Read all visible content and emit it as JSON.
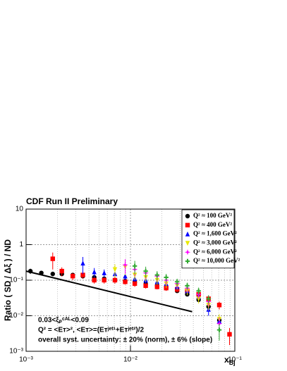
{
  "chart_data": {
    "type": "scatter",
    "title": "CDF Run II Preliminary",
    "y_label": "Ratio ( SD / Δξ ) / ND",
    "x_label": {
      "base": "x",
      "sub": "Bj"
    },
    "log_x": true,
    "log_y": true,
    "grid": true,
    "legend": "upper-right",
    "xlim": [
      0.001,
      0.1
    ],
    "ylim": [
      0.001,
      10
    ],
    "xticks": [
      {
        "value": 0.001,
        "label": "10⁻³"
      },
      {
        "value": 0.01,
        "label": "10⁻²"
      },
      {
        "value": 0.1,
        "label": "10⁻¹"
      }
    ],
    "yticks": [
      {
        "value": 0.001,
        "label": "10⁻³"
      },
      {
        "value": 0.01,
        "label": "10⁻²"
      },
      {
        "value": 0.1,
        "label": "10⁻¹"
      },
      1,
      10
    ],
    "annotations": [
      "0.03<ξₚᶜᴬᴸ<0.09",
      "Q² = <Eᴛ>²,  <Eᴛ>=(Eᴛʲᵉᵗ¹+Eᴛʲᵉᵗ²)/2",
      "overall syst. uncertainty: ± 20% (norm), ± 6% (slope)"
    ],
    "fit": {
      "x": [
        0.001,
        0.039
      ],
      "values": [
        0.18,
        0.013
      ],
      "color": "#000000"
    },
    "series": [
      {
        "name": "Q² ≈  100 GeV²",
        "color": "#000000",
        "marker": "circle",
        "x": [
          0.0011,
          0.0014,
          0.0018,
          0.0022,
          0.0028,
          0.0035,
          0.0045,
          0.0056,
          0.0071,
          0.0089,
          0.011,
          0.014,
          0.018,
          0.022,
          0.028,
          0.035,
          0.045,
          0.056,
          0.071
        ],
        "values": [
          0.18,
          0.16,
          0.15,
          0.15,
          0.14,
          0.13,
          0.12,
          0.11,
          0.1,
          0.095,
          0.088,
          0.078,
          0.07,
          0.06,
          0.05,
          0.04,
          0.028,
          0.018,
          0.0075
        ],
        "errors": [
          0.03,
          0.02,
          0.02,
          0.02,
          0.02,
          0.015,
          0.015,
          0.01,
          0.01,
          0.01,
          0.01,
          0.01,
          0.008,
          0.007,
          0.006,
          0.005,
          0.004,
          0.003,
          0.0015
        ]
      },
      {
        "name": "Q² ≈  400 GeV²",
        "color": "#ff0000",
        "marker": "square",
        "x": [
          0.0018,
          0.0022,
          0.0028,
          0.0035,
          0.0045,
          0.0056,
          0.0071,
          0.0089,
          0.011,
          0.014,
          0.018,
          0.022,
          0.028,
          0.035,
          0.045,
          0.056,
          0.071,
          0.089
        ],
        "values": [
          0.4,
          0.18,
          0.13,
          0.14,
          0.1,
          0.1,
          0.1,
          0.09,
          0.08,
          0.07,
          0.065,
          0.06,
          0.055,
          0.05,
          0.04,
          0.03,
          0.02,
          0.003
        ],
        "errors": [
          0.2,
          0.05,
          0.03,
          0.03,
          0.02,
          0.02,
          0.02,
          0.015,
          0.015,
          0.012,
          0.01,
          0.01,
          0.01,
          0.008,
          0.007,
          0.006,
          0.005,
          0.0015
        ]
      },
      {
        "name": "Q² ≈ 1,600 GeV²",
        "color": "#0000ff",
        "marker": "triangle-up",
        "x": [
          0.0035,
          0.0045,
          0.0056,
          0.0071,
          0.0089,
          0.011,
          0.014,
          0.018,
          0.022,
          0.028,
          0.035,
          0.045,
          0.056,
          0.071
        ],
        "values": [
          0.3,
          0.17,
          0.16,
          0.15,
          0.13,
          0.11,
          0.1,
          0.09,
          0.08,
          0.065,
          0.05,
          0.035,
          0.015,
          0.007
        ],
        "errors": [
          0.15,
          0.05,
          0.04,
          0.03,
          0.03,
          0.02,
          0.02,
          0.015,
          0.015,
          0.012,
          0.01,
          0.008,
          0.005,
          0.003
        ]
      },
      {
        "name": "Q² ≈ 3,000 GeV²",
        "color": "#e8e800",
        "marker": "triangle-down",
        "x": [
          0.0071,
          0.0089,
          0.011,
          0.014,
          0.018,
          0.022,
          0.028,
          0.035,
          0.045,
          0.056,
          0.071
        ],
        "values": [
          0.2,
          0.24,
          0.14,
          0.12,
          0.1,
          0.08,
          0.07,
          0.05,
          0.03,
          0.02,
          0.008
        ],
        "errors": [
          0.08,
          0.1,
          0.04,
          0.03,
          0.025,
          0.02,
          0.015,
          0.012,
          0.008,
          0.006,
          0.003
        ]
      },
      {
        "name": "Q² ≈ 6,000 GeV²",
        "color": "#ff00ff",
        "marker": "star",
        "x": [
          0.0089,
          0.011,
          0.014,
          0.018,
          0.022,
          0.028,
          0.035,
          0.045,
          0.056,
          0.071
        ],
        "values": [
          0.27,
          0.2,
          0.16,
          0.13,
          0.1,
          0.08,
          0.06,
          0.04,
          0.025,
          0.006
        ],
        "errors": [
          0.12,
          0.07,
          0.05,
          0.035,
          0.025,
          0.02,
          0.015,
          0.01,
          0.007,
          0.003
        ]
      },
      {
        "name": "Q² ≈ 10,000 GeV²",
        "color": "#33aa33",
        "marker": "cross",
        "x": [
          0.011,
          0.014,
          0.018,
          0.022,
          0.028,
          0.035,
          0.045,
          0.056,
          0.071
        ],
        "values": [
          0.25,
          0.18,
          0.14,
          0.12,
          0.09,
          0.07,
          0.05,
          0.03,
          0.004
        ],
        "errors": [
          0.1,
          0.06,
          0.04,
          0.03,
          0.02,
          0.015,
          0.012,
          0.008,
          0.002
        ]
      }
    ]
  }
}
